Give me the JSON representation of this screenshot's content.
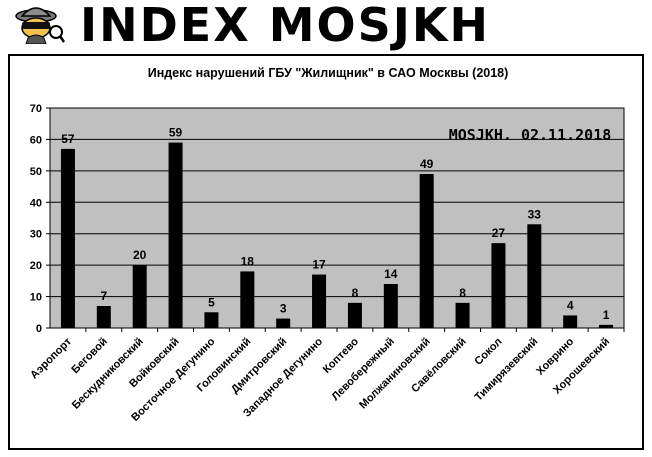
{
  "header": {
    "title": "INDEX MOSJKH",
    "logo_icon": "spy-detective-icon"
  },
  "chart_data": {
    "type": "bar",
    "title": "Индекс нарушений ГБУ \"Жилищник\" в САО Москвы (2018)",
    "annotation": "MOSJKH. 02.11.2018",
    "xlabel": "",
    "ylabel": "",
    "ylim": [
      0,
      70
    ],
    "yticks": [
      0,
      10,
      20,
      30,
      40,
      50,
      60,
      70
    ],
    "grid": true,
    "plot_background": "#c0c0c0",
    "bar_color": "#000000",
    "categories": [
      "Аэропорт",
      "Беговой",
      "Бескудниковский",
      "Войковский",
      "Восточное Дегунино",
      "Головинский",
      "Дмитровский",
      "Западное Дегунино",
      "Коптево",
      "Левобережный",
      "Молжаниновский",
      "Савёловский",
      "Сокол",
      "Тимирязевский",
      "Ховрино",
      "Хорошевский"
    ],
    "values": [
      57,
      7,
      20,
      59,
      5,
      18,
      3,
      17,
      8,
      14,
      49,
      8,
      27,
      33,
      4,
      1
    ],
    "data_labels": true
  }
}
